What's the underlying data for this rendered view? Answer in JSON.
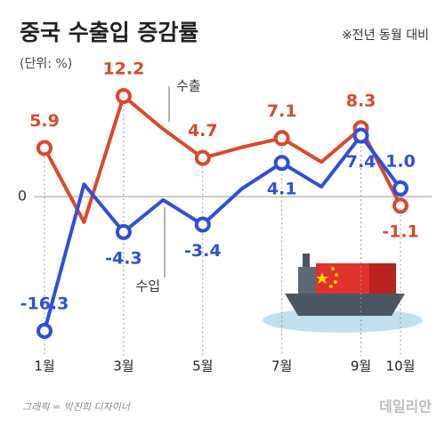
{
  "chart_data": {
    "type": "line",
    "title": "중국 수출입 증감률",
    "subtitle": "(단위: %)",
    "note": "※전년 동월 대비",
    "credit": "그래픽 = 박진희 디자이너",
    "watermark": "데일리안",
    "categories": [
      "1월",
      null,
      "3월",
      null,
      "5월",
      null,
      "7월",
      null,
      "9월",
      "10월"
    ],
    "series": [
      {
        "name": "수출",
        "color": "#d9492e",
        "values": [
          5.9,
          -3.1,
          12.2,
          8.2,
          4.7,
          6.0,
          7.1,
          4.2,
          8.3,
          -1.1
        ],
        "value_labels": [
          "5.9",
          null,
          "12.2",
          null,
          "4.7",
          null,
          "7.1",
          null,
          "8.3",
          "-1.1"
        ]
      },
      {
        "name": "수입",
        "color": "#2f4fd8",
        "values": [
          -16.3,
          1.5,
          -4.3,
          -0.4,
          -3.4,
          1.0,
          4.1,
          1.2,
          7.4,
          1.0
        ],
        "value_labels": [
          "-16.3",
          null,
          "-4.3",
          null,
          "-3.4",
          null,
          "4.1",
          null,
          "7.4",
          "1.0"
        ]
      }
    ],
    "ylim": [
      -19,
      15.5
    ],
    "yticks": [
      0
    ]
  }
}
